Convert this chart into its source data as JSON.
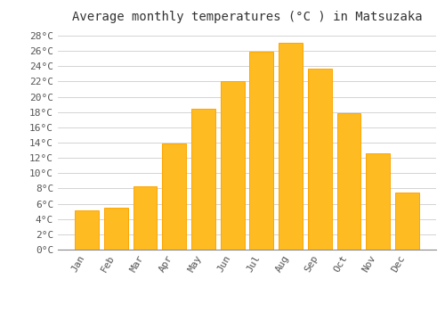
{
  "title": "Average monthly temperatures (°C ) in Matsuzaka",
  "months": [
    "Jan",
    "Feb",
    "Mar",
    "Apr",
    "May",
    "Jun",
    "Jul",
    "Aug",
    "Sep",
    "Oct",
    "Nov",
    "Dec"
  ],
  "values": [
    5.1,
    5.5,
    8.3,
    13.9,
    18.4,
    22.0,
    25.9,
    27.1,
    23.7,
    17.8,
    12.6,
    7.5
  ],
  "bar_color": "#FFBB22",
  "bar_edge_color": "#FFA500",
  "background_color": "#FFFFFF",
  "grid_color": "#CCCCCC",
  "ylim": [
    0,
    29
  ],
  "yticks": [
    0,
    2,
    4,
    6,
    8,
    10,
    12,
    14,
    16,
    18,
    20,
    22,
    24,
    26,
    28
  ],
  "title_fontsize": 10,
  "tick_fontsize": 8,
  "font_family": "monospace",
  "bar_width": 0.82
}
